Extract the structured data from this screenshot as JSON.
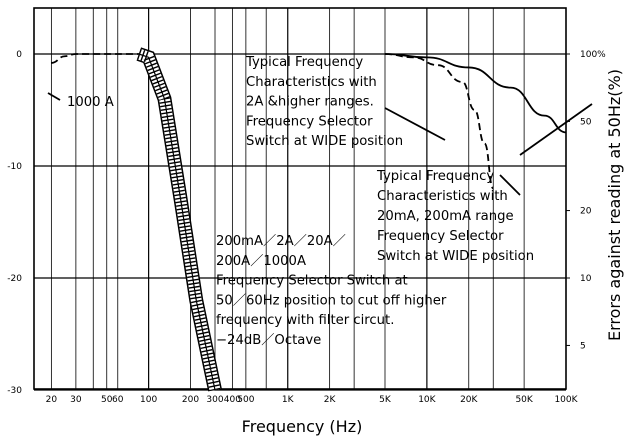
{
  "chart_data": {
    "type": "line",
    "xlabel": "Frequency  (Hz)",
    "ylabel_right": "Errors against reading at 50Hz(%)",
    "x_scale": "log",
    "xlim": [
      15,
      100000
    ],
    "ylim_left": [
      -30,
      0
    ],
    "x_ticks": [
      {
        "value": 20,
        "label": "20"
      },
      {
        "value": 30,
        "label": "30"
      },
      {
        "value": 50,
        "label": "50"
      },
      {
        "value": 60,
        "label": "60"
      },
      {
        "value": 100,
        "label": "100"
      },
      {
        "value": 200,
        "label": "200"
      },
      {
        "value": 300,
        "label": "300"
      },
      {
        "value": 400,
        "label": "400"
      },
      {
        "value": 500,
        "label": "500"
      },
      {
        "value": 1000,
        "label": "1K"
      },
      {
        "value": 2000,
        "label": "2K"
      },
      {
        "value": 5000,
        "label": "5K"
      },
      {
        "value": 10000,
        "label": "10K"
      },
      {
        "value": 20000,
        "label": "20K"
      },
      {
        "value": 50000,
        "label": "50K"
      },
      {
        "value": 100000,
        "label": "100K"
      }
    ],
    "y_ticks_left": [
      {
        "value": 0,
        "label": "0"
      },
      {
        "value": -10,
        "label": "-10"
      },
      {
        "value": -20,
        "label": "-20"
      },
      {
        "value": -30,
        "label": "-30"
      }
    ],
    "y_ticks_right": [
      {
        "value": 100,
        "label": "100%"
      },
      {
        "value": 50,
        "label": "50"
      },
      {
        "value": 20,
        "label": "20"
      },
      {
        "value": 10,
        "label": "10"
      },
      {
        "value": 5,
        "label": "5"
      }
    ],
    "series": [
      {
        "style": "dashed",
        "points": [
          [
            20,
            -0.8
          ],
          [
            25,
            -0.2
          ],
          [
            30,
            0
          ],
          [
            100,
            0
          ]
        ]
      },
      {
        "style": "dashed",
        "points": [
          [
            5000,
            0
          ],
          [
            8000,
            -0.3
          ],
          [
            12000,
            -1
          ],
          [
            18000,
            -2.5
          ],
          [
            22000,
            -5
          ],
          [
            26000,
            -8
          ],
          [
            30000,
            -12
          ]
        ]
      },
      {
        "style": "solid",
        "points": [
          [
            5000,
            0
          ],
          [
            10000,
            -0.3
          ],
          [
            20000,
            -1.2
          ],
          [
            40000,
            -3
          ],
          [
            70000,
            -5.5
          ],
          [
            100000,
            -7
          ]
        ]
      },
      {
        "style": "hatched",
        "points": [
          [
            85,
            0
          ],
          [
            100,
            -0.3
          ],
          [
            130,
            -4
          ],
          [
            170,
            -13
          ],
          [
            220,
            -22
          ],
          [
            300,
            -30
          ]
        ]
      }
    ],
    "annotations": [
      {
        "id": "a1000",
        "lines": [
          "1000 A"
        ]
      },
      {
        "id": "wide2a",
        "lines": [
          "Typical Frequency",
          "Characteristics with",
          "2A  &higher ranges.",
          "Frequency Selector",
          "Switch at WIDE position"
        ]
      },
      {
        "id": "wide20ma",
        "lines": [
          "Typical Frequency",
          "Characteristics with",
          "20mA, 200mA range",
          "Frequency Selector",
          "Switch at WIDE position"
        ]
      },
      {
        "id": "filter",
        "lines": [
          "200mA／2A／20A／",
          "200A／1000A",
          "Frequency Selector Switch at",
          "50／60Hz position to cut off higher",
          "frequency with filter circut.",
          "−24dB／Octave"
        ]
      }
    ]
  }
}
